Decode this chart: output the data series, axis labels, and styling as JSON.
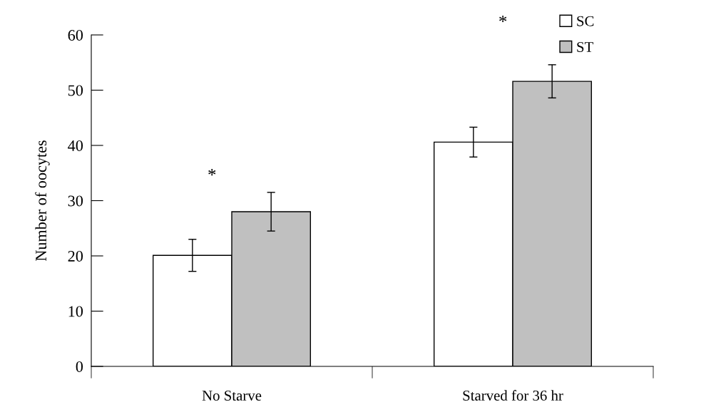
{
  "chart_data": {
    "type": "bar",
    "ylabel": "Number of oocytes",
    "categories": [
      "No Starve",
      "Starved for 36 hr"
    ],
    "series": [
      {
        "name": "SC",
        "color": "#ffffff",
        "values": [
          20.1,
          40.6
        ],
        "errors": [
          2.9,
          2.7
        ]
      },
      {
        "name": "ST",
        "color": "#c0c0c0",
        "values": [
          28.0,
          51.6
        ],
        "errors": [
          3.5,
          3.0
        ]
      }
    ],
    "ylim": [
      0,
      60
    ],
    "yticks": [
      0,
      10,
      20,
      30,
      40,
      50,
      60
    ],
    "grid": false,
    "legend": "top right",
    "annotations": [
      "*",
      "*"
    ]
  }
}
